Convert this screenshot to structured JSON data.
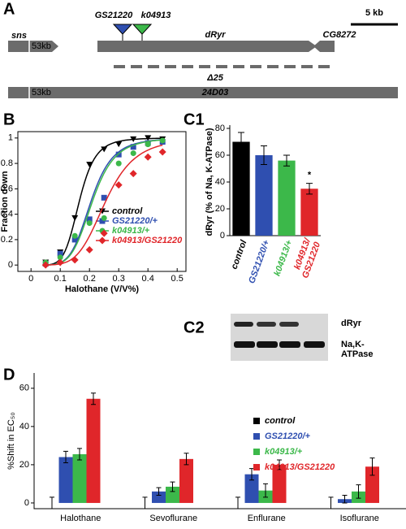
{
  "panel_labels": [
    "A",
    "B",
    "C1",
    "C2",
    "D"
  ],
  "gene_map": {
    "scale": "5 kb",
    "genes": [
      {
        "name": "sns",
        "offset": "53kb"
      },
      {
        "name": "dRyr"
      },
      {
        "name": "CG8272"
      }
    ],
    "insertions": [
      {
        "name": "GS21220",
        "color": "#2f4fb0"
      },
      {
        "name": "k04913",
        "color": "#3cb84a"
      }
    ],
    "deletion": "Δ25",
    "clone": {
      "name": "24D03",
      "offset": "53kb"
    }
  },
  "blot": {
    "band_labels": [
      "dRyr",
      [
        "Na,K-",
        "ATPase"
      ]
    ]
  },
  "chart_data": [
    {
      "type": "scatter",
      "xlabel": "Halothane (V/V%)",
      "ylabel": "Fraction down",
      "xlim": [
        -0.045,
        0.53
      ],
      "xticks": [
        0,
        0.1,
        0.2,
        0.3,
        0.4,
        0.5
      ],
      "ylim": [
        -0.05,
        1.05
      ],
      "yticks": [
        0,
        0.2,
        0.4,
        0.6,
        0.8,
        1
      ],
      "x": [
        0.05,
        0.1,
        0.15,
        0.2,
        0.25,
        0.3,
        0.35,
        0.4,
        0.45
      ],
      "series": [
        {
          "name": "control",
          "color": "#000000",
          "marker": "triangle-down",
          "values": [
            0.02,
            0.1,
            0.37,
            0.79,
            0.91,
            0.95,
            0.99,
            1.0,
            0.99
          ],
          "fit": {
            "ec50": 0.165,
            "hill": 6
          }
        },
        {
          "name": "GS21220/+",
          "color": "#2f4fb0",
          "marker": "square",
          "values": [
            0.01,
            0.09,
            0.2,
            0.36,
            0.53,
            0.87,
            0.93,
            0.96,
            0.97
          ],
          "fit": {
            "ec50": 0.205,
            "hill": 5.5
          }
        },
        {
          "name": "k04913/+",
          "color": "#3cb84a",
          "marker": "circle",
          "values": [
            0.02,
            0.06,
            0.23,
            0.33,
            0.37,
            0.8,
            0.88,
            0.95,
            0.98
          ],
          "fit": {
            "ec50": 0.21,
            "hill": 5.5
          }
        },
        {
          "name": "k04913/GS21220",
          "color": "#e0262a",
          "marker": "diamond",
          "values": [
            0.0,
            0.02,
            0.04,
            0.12,
            0.25,
            0.63,
            0.72,
            0.85,
            0.89
          ],
          "fit": {
            "ec50": 0.255,
            "hill": 5
          }
        }
      ]
    },
    {
      "type": "bar",
      "ylabel": "dRyr (% of Na, K-ATPase)",
      "ylim": [
        0,
        80
      ],
      "yticks": [
        0,
        20,
        40,
        60,
        80
      ],
      "categories": [
        "control",
        "GS21220/+",
        "k04913/+",
        "k04913/GS21220"
      ],
      "colors": [
        "#000000",
        "#2f4fb0",
        "#3cb84a",
        "#e0262a"
      ],
      "values": [
        70,
        60,
        56,
        35
      ],
      "errors": [
        7,
        7,
        4,
        4
      ],
      "annotation": "*"
    },
    {
      "type": "grouped-bar",
      "ylabel": "%Shift in EC₅₀",
      "ylim": [
        -3,
        68
      ],
      "yticks": [
        0,
        20,
        40,
        60
      ],
      "categories": [
        "Halothane",
        "Sevoflurane",
        "Enflurane",
        "Isoflurane"
      ],
      "series": [
        {
          "name": "control",
          "color": "#000000",
          "values": [
            0,
            0,
            0,
            0
          ],
          "errors": [
            3,
            3,
            3,
            3
          ]
        },
        {
          "name": "GS21220/+",
          "color": "#2f4fb0",
          "values": [
            24,
            6,
            15,
            2
          ],
          "errors": [
            3,
            2,
            3,
            2
          ]
        },
        {
          "name": "k04913/+",
          "color": "#3cb84a",
          "values": [
            25.5,
            8.5,
            6.5,
            6
          ],
          "errors": [
            3,
            2.5,
            3.5,
            3.5
          ]
        },
        {
          "name": "k04913/GS21220",
          "color": "#e0262a",
          "values": [
            54.5,
            23,
            20,
            19
          ],
          "errors": [
            3,
            3,
            2.5,
            4.5
          ]
        }
      ]
    }
  ]
}
